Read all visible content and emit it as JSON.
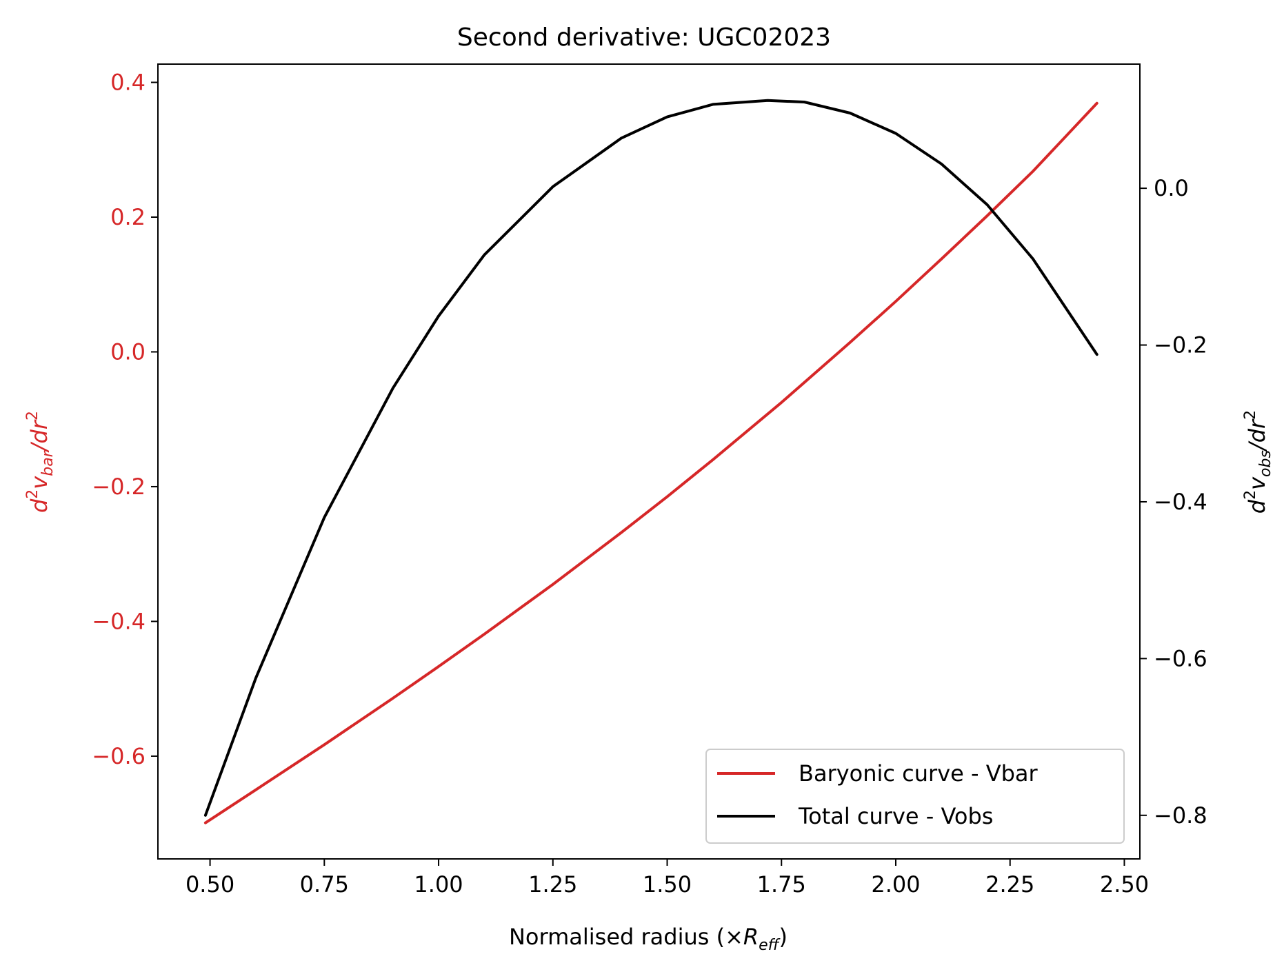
{
  "chart_data": {
    "type": "line",
    "title": "Second derivative: UGC02023",
    "xlabel": {
      "main": "Normalised radius (×",
      "symbol": "R",
      "subscript": "eff",
      "close": ")"
    },
    "ylabel_left": {
      "pre": "d",
      "sup1": "2",
      "v": "v",
      "sub": "bar",
      "slash": "/dr",
      "sup2": "2"
    },
    "ylabel_right": {
      "pre": "d",
      "sup1": "2",
      "v": "v",
      "sub": "obs",
      "slash": "/dr",
      "sup2": "2"
    },
    "xlim": [
      0.386,
      2.534
    ],
    "ylim_left": [
      -0.7525,
      0.4271
    ],
    "ylim_right": [
      -0.8556,
      0.1584
    ],
    "x_ticks": [
      0.5,
      0.75,
      1.0,
      1.25,
      1.5,
      1.75,
      2.0,
      2.25,
      2.5
    ],
    "x_tick_labels": [
      "0.50",
      "0.75",
      "1.00",
      "1.25",
      "1.50",
      "1.75",
      "2.00",
      "2.25",
      "2.50"
    ],
    "y_left_ticks": [
      -0.6,
      -0.4,
      -0.2,
      0.0,
      0.2,
      0.4
    ],
    "y_left_tick_labels": [
      "−0.6",
      "−0.4",
      "−0.2",
      "0.0",
      "0.2",
      "0.4"
    ],
    "y_right_ticks": [
      -0.8,
      -0.6,
      -0.4,
      -0.2,
      0.0
    ],
    "y_right_tick_labels": [
      "−0.8",
      "−0.6",
      "−0.4",
      "−0.2",
      "0.0"
    ],
    "legend_position": "lower right",
    "series": [
      {
        "name": "Baryonic curve - Vbar",
        "axis": "left",
        "color": "#d62728",
        "x": [
          0.49,
          0.6,
          0.75,
          0.9,
          1.0,
          1.1,
          1.25,
          1.4,
          1.5,
          1.6,
          1.75,
          1.9,
          2.0,
          2.1,
          2.2,
          2.3,
          2.44
        ],
        "y": [
          -0.699,
          -0.65,
          -0.583,
          -0.514,
          -0.467,
          -0.419,
          -0.345,
          -0.268,
          -0.215,
          -0.16,
          -0.075,
          0.014,
          0.075,
          0.138,
          0.202,
          0.268,
          0.369
        ]
      },
      {
        "name": "Total curve - Vobs",
        "axis": "right",
        "color": "#000000",
        "x": [
          0.49,
          0.6,
          0.75,
          0.9,
          1.0,
          1.1,
          1.25,
          1.4,
          1.5,
          1.6,
          1.72,
          1.8,
          1.9,
          2.0,
          2.1,
          2.2,
          2.3,
          2.44
        ],
        "y": [
          -0.8,
          -0.625,
          -0.42,
          -0.255,
          -0.163,
          -0.085,
          0.002,
          0.064,
          0.091,
          0.107,
          0.112,
          0.11,
          0.096,
          0.07,
          0.031,
          -0.021,
          -0.09,
          -0.212
        ]
      }
    ]
  }
}
